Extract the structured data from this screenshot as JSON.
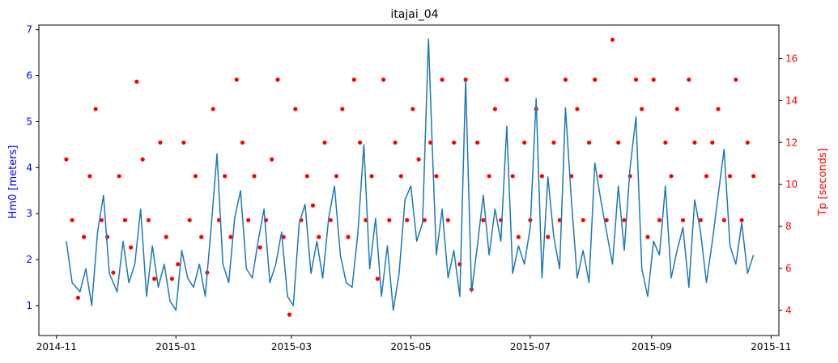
{
  "chart_data": {
    "type": "line",
    "title": "itajai_04",
    "xlabel": "",
    "x_axis": {
      "type": "date",
      "range": [
        "2014-10-23",
        "2015-11-05"
      ],
      "ticks": [
        "2014-11-01",
        "2015-01-01",
        "2015-03-01",
        "2015-05-01",
        "2015-07-01",
        "2015-09-01",
        "2015-11-01"
      ],
      "tick_labels": [
        "2014-11",
        "2015-01",
        "2015-03",
        "2015-05",
        "2015-07",
        "2015-09",
        "2015-11"
      ]
    },
    "y_left": {
      "label": "Hm0 [meters]",
      "color": "#0000ff",
      "ylim": [
        0.35,
        7.1
      ],
      "ticks": [
        1,
        2,
        3,
        4,
        5,
        6,
        7
      ]
    },
    "y_right": {
      "label": "Tp [seconds]",
      "color": "#ff0000",
      "ylim": [
        2.8,
        17.6
      ],
      "ticks": [
        4,
        6,
        8,
        10,
        12,
        14,
        16
      ]
    },
    "series": [
      {
        "axis": "left",
        "style": "line",
        "color": "#1f77b4",
        "x": [
          "2014-11-06",
          "2014-11-09",
          "2014-11-13",
          "2014-11-16",
          "2014-11-19",
          "2014-11-22",
          "2014-11-25",
          "2014-11-28",
          "2014-12-02",
          "2014-12-05",
          "2014-12-08",
          "2014-12-11",
          "2014-12-14",
          "2014-12-17",
          "2014-12-20",
          "2014-12-23",
          "2014-12-26",
          "2014-12-29",
          "2015-01-01",
          "2015-01-04",
          "2015-01-07",
          "2015-01-10",
          "2015-01-13",
          "2015-01-16",
          "2015-01-19",
          "2015-01-22",
          "2015-01-25",
          "2015-01-28",
          "2015-01-31",
          "2015-02-03",
          "2015-02-06",
          "2015-02-09",
          "2015-02-12",
          "2015-02-15",
          "2015-02-18",
          "2015-02-21",
          "2015-02-24",
          "2015-02-27",
          "2015-03-02",
          "2015-03-05",
          "2015-03-08",
          "2015-03-11",
          "2015-03-14",
          "2015-03-17",
          "2015-03-20",
          "2015-03-23",
          "2015-03-26",
          "2015-03-29",
          "2015-04-01",
          "2015-04-04",
          "2015-04-07",
          "2015-04-10",
          "2015-04-13",
          "2015-04-16",
          "2015-04-19",
          "2015-04-22",
          "2015-04-25",
          "2015-04-28",
          "2015-05-01",
          "2015-05-04",
          "2015-05-07",
          "2015-05-10",
          "2015-05-12",
          "2015-05-14",
          "2015-05-17",
          "2015-05-20",
          "2015-05-23",
          "2015-05-26",
          "2015-05-29",
          "2015-06-01",
          "2015-06-04",
          "2015-06-07",
          "2015-06-10",
          "2015-06-13",
          "2015-06-16",
          "2015-06-19",
          "2015-06-22",
          "2015-06-25",
          "2015-06-28",
          "2015-07-01",
          "2015-07-04",
          "2015-07-07",
          "2015-07-10",
          "2015-07-13",
          "2015-07-16",
          "2015-07-19",
          "2015-07-22",
          "2015-07-25",
          "2015-07-28",
          "2015-07-31",
          "2015-08-03",
          "2015-08-06",
          "2015-08-09",
          "2015-08-12",
          "2015-08-15",
          "2015-08-18",
          "2015-08-21",
          "2015-08-24",
          "2015-08-27",
          "2015-08-30",
          "2015-09-02",
          "2015-09-05",
          "2015-09-08",
          "2015-09-11",
          "2015-09-14",
          "2015-09-17",
          "2015-09-20",
          "2015-09-23",
          "2015-09-26",
          "2015-09-29",
          "2015-10-02",
          "2015-10-05",
          "2015-10-08",
          "2015-10-11",
          "2015-10-14",
          "2015-10-17",
          "2015-10-20",
          "2015-10-23"
        ],
        "values": [
          2.4,
          1.5,
          1.3,
          1.8,
          1.0,
          2.6,
          3.4,
          1.7,
          1.3,
          2.4,
          1.5,
          1.9,
          3.1,
          1.2,
          2.3,
          1.4,
          1.9,
          1.1,
          0.9,
          2.2,
          1.6,
          1.4,
          1.9,
          1.2,
          2.7,
          4.3,
          1.9,
          1.5,
          2.9,
          3.5,
          1.8,
          1.6,
          2.4,
          3.1,
          1.5,
          1.9,
          2.6,
          1.2,
          1.0,
          2.8,
          3.2,
          1.7,
          2.4,
          1.6,
          2.9,
          3.6,
          2.1,
          1.5,
          1.4,
          2.6,
          4.5,
          1.8,
          2.9,
          1.2,
          2.3,
          0.9,
          1.7,
          3.3,
          3.6,
          2.4,
          2.8,
          6.8,
          4.4,
          2.1,
          3.1,
          1.6,
          2.2,
          1.2,
          5.9,
          1.3,
          2.3,
          3.4,
          2.1,
          3.1,
          2.4,
          4.9,
          1.7,
          2.3,
          1.9,
          2.7,
          5.5,
          1.6,
          3.8,
          2.5,
          1.8,
          5.3,
          3.3,
          1.6,
          2.2,
          1.5,
          4.1,
          3.3,
          2.6,
          1.9,
          3.6,
          2.2,
          4.0,
          5.1,
          1.8,
          1.2,
          2.4,
          2.1,
          3.6,
          1.6,
          2.2,
          2.7,
          1.4,
          3.3,
          2.6,
          1.5,
          2.4,
          3.4,
          4.4,
          2.3,
          1.9,
          2.8,
          1.7,
          2.1
        ]
      },
      {
        "axis": "right",
        "style": "scatter",
        "color": "#ff0000",
        "x": [
          "2014-11-06",
          "2014-11-09",
          "2014-11-12",
          "2014-11-15",
          "2014-11-18",
          "2014-11-21",
          "2014-11-24",
          "2014-11-27",
          "2014-11-30",
          "2014-12-03",
          "2014-12-06",
          "2014-12-09",
          "2014-12-12",
          "2014-12-15",
          "2014-12-18",
          "2014-12-21",
          "2014-12-24",
          "2014-12-27",
          "2014-12-30",
          "2015-01-02",
          "2015-01-05",
          "2015-01-08",
          "2015-01-11",
          "2015-01-14",
          "2015-01-17",
          "2015-01-20",
          "2015-01-23",
          "2015-01-26",
          "2015-01-29",
          "2015-02-01",
          "2015-02-04",
          "2015-02-07",
          "2015-02-10",
          "2015-02-13",
          "2015-02-16",
          "2015-02-19",
          "2015-02-22",
          "2015-02-25",
          "2015-02-28",
          "2015-03-03",
          "2015-03-06",
          "2015-03-09",
          "2015-03-12",
          "2015-03-15",
          "2015-03-18",
          "2015-03-21",
          "2015-03-24",
          "2015-03-27",
          "2015-03-30",
          "2015-04-02",
          "2015-04-05",
          "2015-04-08",
          "2015-04-11",
          "2015-04-14",
          "2015-04-17",
          "2015-04-20",
          "2015-04-23",
          "2015-04-26",
          "2015-04-29",
          "2015-05-02",
          "2015-05-05",
          "2015-05-08",
          "2015-05-11",
          "2015-05-14",
          "2015-05-17",
          "2015-05-20",
          "2015-05-23",
          "2015-05-26",
          "2015-05-29",
          "2015-06-01",
          "2015-06-04",
          "2015-06-07",
          "2015-06-10",
          "2015-06-13",
          "2015-06-16",
          "2015-06-19",
          "2015-06-22",
          "2015-06-25",
          "2015-06-28",
          "2015-07-01",
          "2015-07-04",
          "2015-07-07",
          "2015-07-10",
          "2015-07-13",
          "2015-07-16",
          "2015-07-19",
          "2015-07-22",
          "2015-07-25",
          "2015-07-28",
          "2015-07-31",
          "2015-08-03",
          "2015-08-06",
          "2015-08-09",
          "2015-08-12",
          "2015-08-15",
          "2015-08-18",
          "2015-08-21",
          "2015-08-24",
          "2015-08-27",
          "2015-08-30",
          "2015-09-02",
          "2015-09-05",
          "2015-09-08",
          "2015-09-11",
          "2015-09-14",
          "2015-09-17",
          "2015-09-20",
          "2015-09-23",
          "2015-09-26",
          "2015-09-29",
          "2015-10-02",
          "2015-10-05",
          "2015-10-08",
          "2015-10-11",
          "2015-10-14",
          "2015-10-17",
          "2015-10-20",
          "2015-10-23"
        ],
        "values": [
          11.2,
          8.3,
          4.6,
          7.5,
          10.4,
          13.6,
          8.3,
          7.5,
          5.8,
          10.4,
          8.3,
          7.0,
          14.9,
          11.2,
          8.3,
          5.5,
          12.0,
          7.5,
          5.5,
          6.2,
          12.0,
          8.3,
          10.4,
          7.5,
          5.8,
          13.6,
          8.3,
          10.4,
          7.5,
          15.0,
          12.0,
          8.3,
          10.4,
          7.0,
          8.3,
          11.2,
          15.0,
          7.5,
          3.8,
          13.6,
          8.3,
          10.4,
          9.0,
          7.5,
          12.0,
          8.3,
          10.4,
          13.6,
          7.5,
          15.0,
          12.0,
          8.3,
          10.4,
          5.5,
          15.0,
          8.3,
          12.0,
          10.4,
          8.3,
          13.6,
          11.2,
          8.3,
          12.0,
          10.4,
          15.0,
          8.3,
          12.0,
          6.2,
          15.0,
          5.0,
          12.0,
          8.3,
          10.4,
          13.6,
          8.3,
          15.0,
          10.4,
          7.5,
          12.0,
          8.3,
          13.6,
          10.4,
          7.5,
          12.0,
          8.3,
          15.0,
          10.4,
          13.6,
          8.3,
          12.0,
          15.0,
          10.4,
          8.3,
          16.9,
          12.0,
          8.3,
          10.4,
          15.0,
          13.6,
          7.5,
          15.0,
          8.3,
          12.0,
          10.4,
          13.6,
          8.3,
          15.0,
          12.0,
          8.3,
          10.4,
          12.0,
          13.6,
          8.3,
          10.4,
          15.0,
          8.3,
          12.0,
          10.4
        ]
      }
    ]
  }
}
